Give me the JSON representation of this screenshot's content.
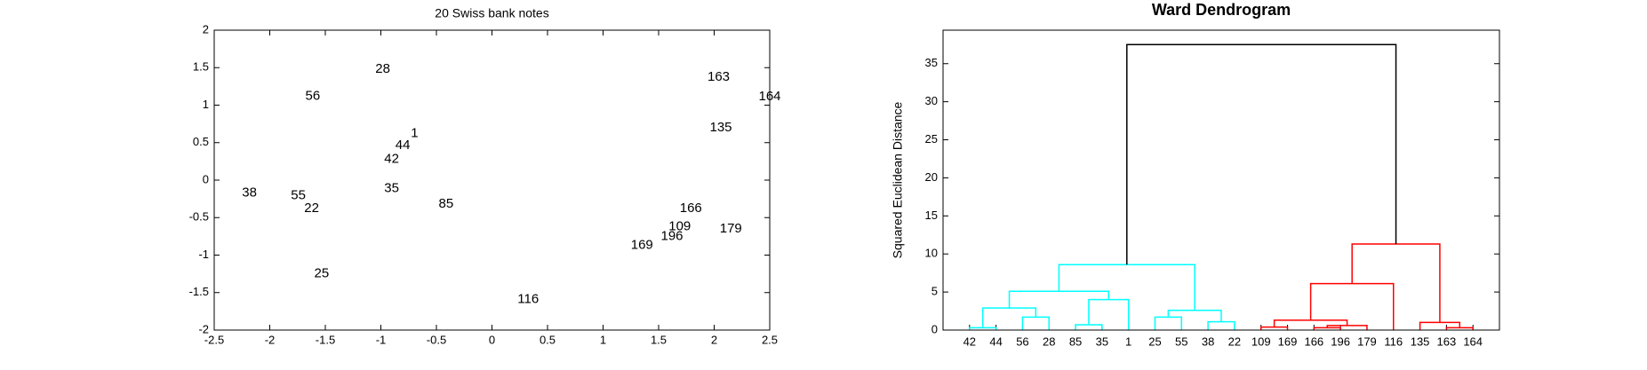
{
  "chart_data": [
    {
      "type": "scatter",
      "title": "20 Swiss bank notes",
      "labels": [
        "28",
        "56",
        "1",
        "44",
        "42",
        "38",
        "55",
        "22",
        "35",
        "85",
        "25",
        "116",
        "163",
        "164",
        "135",
        "166",
        "109",
        "196",
        "179",
        "169"
      ],
      "x": [
        -1.05,
        -1.68,
        -0.73,
        -0.87,
        -0.97,
        -2.25,
        -1.81,
        -1.69,
        -0.97,
        -0.48,
        -1.6,
        0.23,
        1.94,
        2.4,
        1.96,
        1.69,
        1.59,
        1.52,
        2.05,
        1.25
      ],
      "y": [
        1.48,
        1.12,
        0.62,
        0.46,
        0.28,
        -0.17,
        -0.21,
        -0.38,
        -0.11,
        -0.32,
        -1.25,
        -1.59,
        1.37,
        1.11,
        0.7,
        -0.38,
        -0.62,
        -0.75,
        -0.65,
        -0.87
      ],
      "xlim": [
        -2.5,
        2.5
      ],
      "ylim": [
        -2,
        2
      ],
      "xticks": [
        -2.5,
        -2,
        -1.5,
        -1,
        -0.5,
        0,
        0.5,
        1,
        1.5,
        2,
        2.5
      ],
      "yticks": [
        -2,
        -1.5,
        -1,
        -0.5,
        0,
        0.5,
        1,
        1.5,
        2
      ]
    },
    {
      "type": "dendrogram",
      "title": "Ward Dendrogram",
      "y_label": "Squared Euclidean Distance",
      "leaves": [
        "42",
        "44",
        "56",
        "28",
        "85",
        "35",
        "1",
        "25",
        "55",
        "38",
        "22",
        "109",
        "169",
        "166",
        "196",
        "179",
        "116",
        "135",
        "163",
        "164"
      ],
      "links": [
        {
          "left": 0,
          "right": 1,
          "height": 0.3,
          "color": "#00ffff"
        },
        {
          "left": 4,
          "right": 5,
          "height": 0.7,
          "color": "#00ffff"
        },
        {
          "left": 2,
          "right": 3,
          "height": 1.7,
          "color": "#00ffff"
        },
        {
          "left": 7,
          "right": 8,
          "height": 1.7,
          "color": "#00ffff"
        },
        {
          "left": 9,
          "right": 10,
          "height": 1.1,
          "color": "#00ffff"
        },
        {
          "left": 20,
          "right": 22,
          "height": 2.9,
          "color": "#00ffff"
        },
        {
          "left": 21,
          "right": 6,
          "height": 4.0,
          "color": "#00ffff"
        },
        {
          "left": 23,
          "right": 24,
          "height": 2.6,
          "color": "#00ffff"
        },
        {
          "left": 25,
          "right": 26,
          "height": 5.1,
          "color": "#00ffff"
        },
        {
          "left": 28,
          "right": 27,
          "height": 8.6,
          "color": "#00ffff"
        },
        {
          "left": 11,
          "right": 12,
          "height": 0.4,
          "color": "#ff0000"
        },
        {
          "left": 13,
          "right": 14,
          "height": 0.3,
          "color": "#ff0000"
        },
        {
          "left": 31,
          "right": 15,
          "height": 0.6,
          "color": "#ff0000"
        },
        {
          "left": 30,
          "right": 32,
          "height": 1.3,
          "color": "#ff0000"
        },
        {
          "left": 33,
          "right": 16,
          "height": 6.1,
          "color": "#ff0000"
        },
        {
          "left": 18,
          "right": 19,
          "height": 0.3,
          "color": "#ff0000"
        },
        {
          "left": 17,
          "right": 35,
          "height": 1.0,
          "color": "#ff0000"
        },
        {
          "left": 34,
          "right": 36,
          "height": 11.3,
          "color": "#ff0000"
        },
        {
          "left": 29,
          "right": 37,
          "height": 37.5,
          "color": "#000000"
        }
      ],
      "ylim": [
        0,
        39.4
      ],
      "yticks": [
        0,
        5,
        10,
        15,
        20,
        25,
        30,
        35
      ]
    }
  ]
}
